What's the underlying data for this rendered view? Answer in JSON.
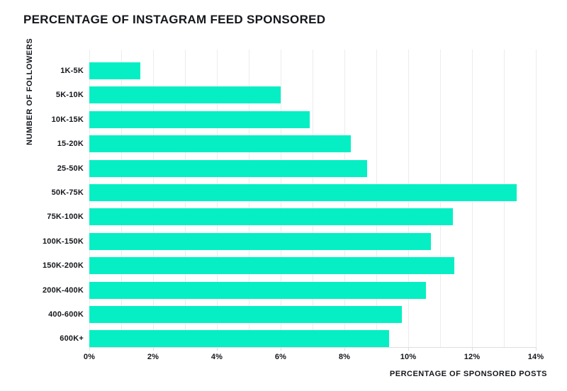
{
  "title": "PERCENTAGE OF INSTAGRAM FEED SPONSORED",
  "chart_data": {
    "type": "bar",
    "orientation": "horizontal",
    "title": "PERCENTAGE OF INSTAGRAM FEED SPONSORED",
    "xlabel": "PERCENTAGE OF SPONSORED POSTS",
    "ylabel": "NUMBER OF FOLLOWERS",
    "categories": [
      "1K-5K",
      "5K-10K",
      "10K-15K",
      "15-20K",
      "25-50K",
      "50K-75K",
      "75K-100K",
      "100K-150K",
      "150K-200K",
      "200K-400K",
      "400-600K",
      "600K+"
    ],
    "values": [
      1.6,
      6.0,
      6.9,
      8.2,
      8.7,
      13.4,
      11.4,
      10.7,
      11.45,
      10.55,
      9.8,
      9.4
    ],
    "value_unit": "%",
    "xlim": [
      0,
      14
    ],
    "x_ticks": [
      "0%",
      "2%",
      "4%",
      "6%",
      "8%",
      "10%",
      "12%",
      "14%"
    ],
    "x_tick_values": [
      0,
      2,
      4,
      6,
      8,
      10,
      12,
      14
    ],
    "gridline_interval": 1,
    "grid": "vertical-only",
    "legend": "none",
    "colors": {
      "bar": "#06efc4",
      "gridline": "#ececec",
      "axis_line": "#dedede",
      "text": "#15171c",
      "background": "#ffffff"
    }
  }
}
